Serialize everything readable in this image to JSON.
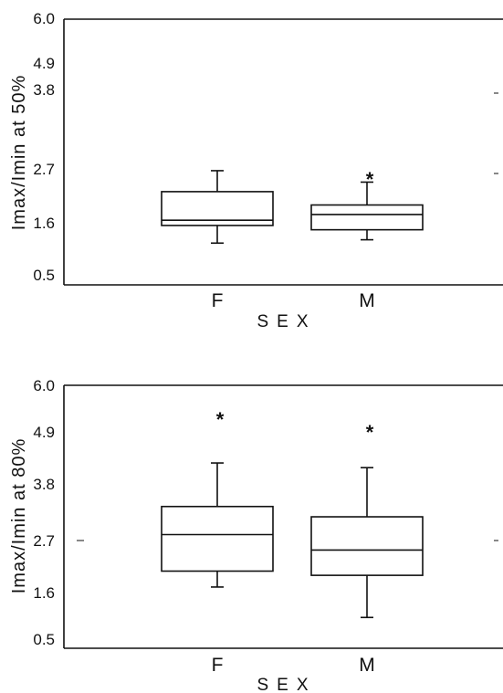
{
  "chart_data": [
    {
      "type": "box",
      "ylabel": "Imax/Imin at 50%",
      "xlabel": "SEX",
      "ylim": [
        0.5,
        6.0
      ],
      "yticks": [
        "6.0",
        "4.9",
        "3.8",
        "2.7",
        "1.6",
        "0.5"
      ],
      "categories": [
        "F",
        "M"
      ],
      "boxes": [
        {
          "category": "F",
          "whisker_low": 1.3,
          "q1": 1.67,
          "median": 1.78,
          "q3": 2.38,
          "whisker_high": 2.82,
          "outliers": []
        },
        {
          "category": "M",
          "whisker_low": 1.37,
          "q1": 1.58,
          "median": 1.9,
          "q3": 2.1,
          "whisker_high": 2.58,
          "outliers": [
            2.72
          ]
        }
      ]
    },
    {
      "type": "box",
      "ylabel": "Imax/Imin at 80%",
      "xlabel": "SEX",
      "ylim": [
        0.5,
        6.0
      ],
      "yticks": [
        "6.0",
        "4.9",
        "3.8",
        "2.7",
        "1.6",
        "0.5"
      ],
      "categories": [
        "F",
        "M"
      ],
      "boxes": [
        {
          "category": "F",
          "whisker_low": 1.73,
          "q1": 2.07,
          "median": 2.85,
          "q3": 3.45,
          "whisker_high": 4.38,
          "outliers": [
            5.4
          ]
        },
        {
          "category": "M",
          "whisker_low": 1.08,
          "q1": 1.98,
          "median": 2.52,
          "q3": 3.23,
          "whisker_high": 4.28,
          "outliers": [
            5.12
          ]
        }
      ]
    }
  ]
}
